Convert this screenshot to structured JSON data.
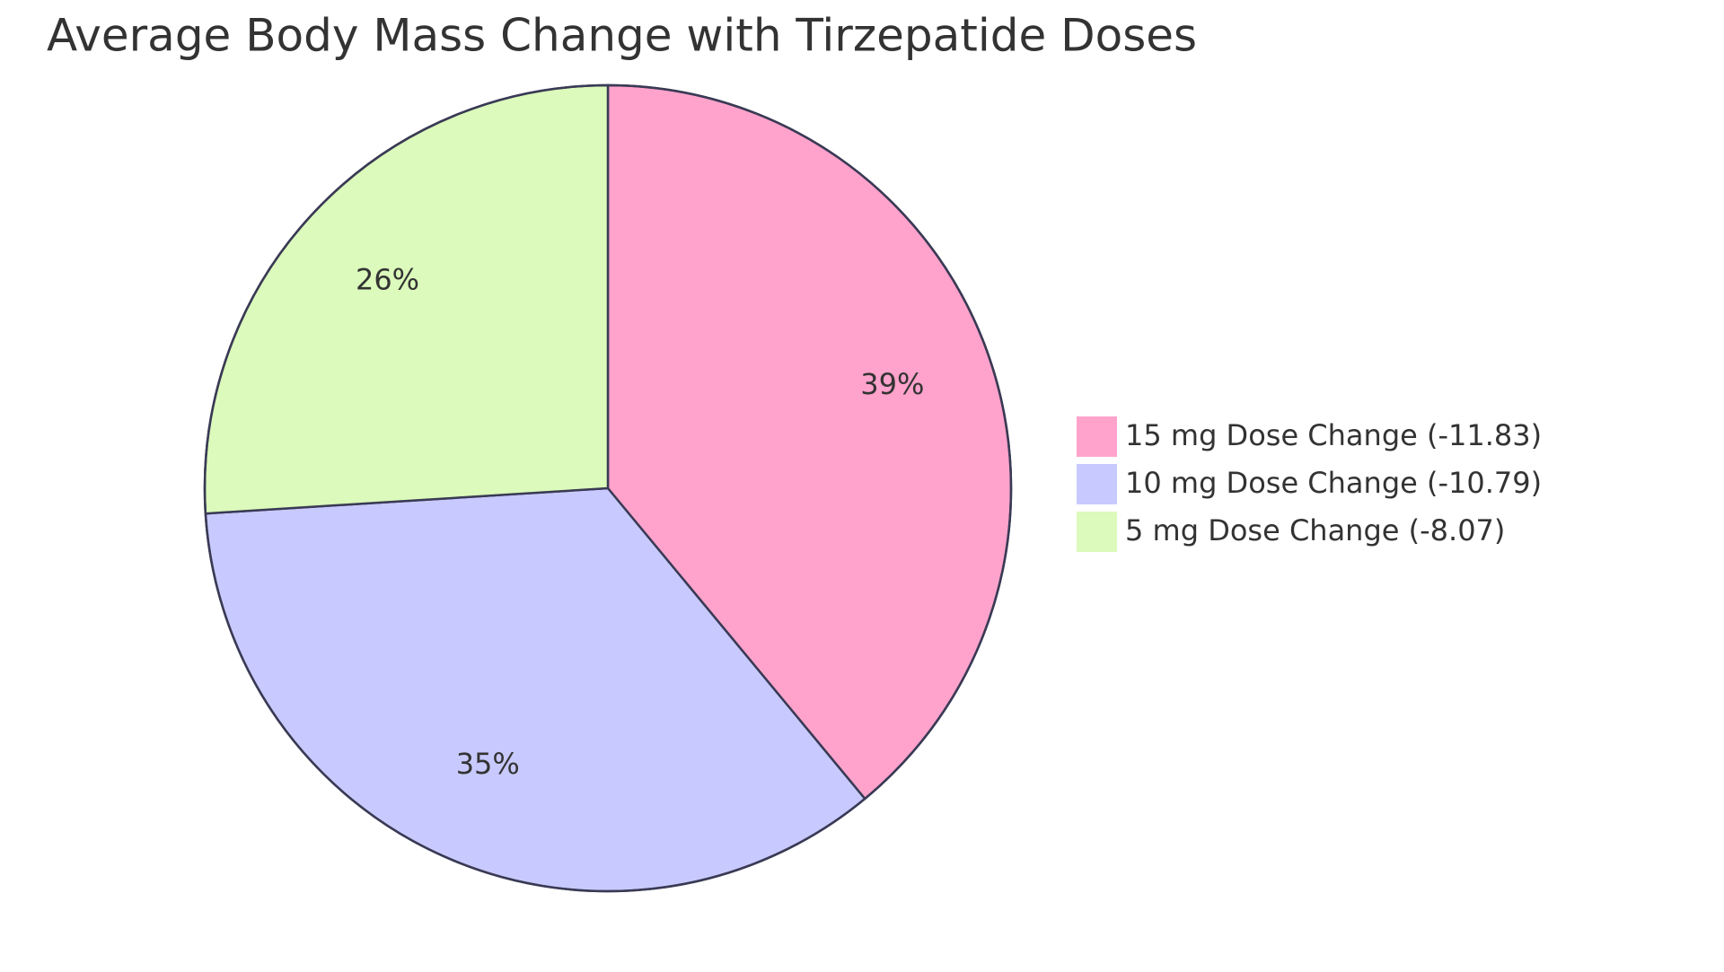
{
  "chart_data": {
    "type": "pie",
    "title": "Average Body Mass Change with Tirzepatide Doses",
    "categories": [
      "15 mg Dose Change (-11.83)",
      "10 mg Dose Change (-10.79)",
      "5 mg Dose Change (-8.07)"
    ],
    "values": [
      39,
      35,
      26
    ],
    "value_labels": [
      "39%",
      "35%",
      "26%"
    ],
    "colors": [
      "#ffa3cc",
      "#c8caff",
      "#dbfabb"
    ]
  }
}
